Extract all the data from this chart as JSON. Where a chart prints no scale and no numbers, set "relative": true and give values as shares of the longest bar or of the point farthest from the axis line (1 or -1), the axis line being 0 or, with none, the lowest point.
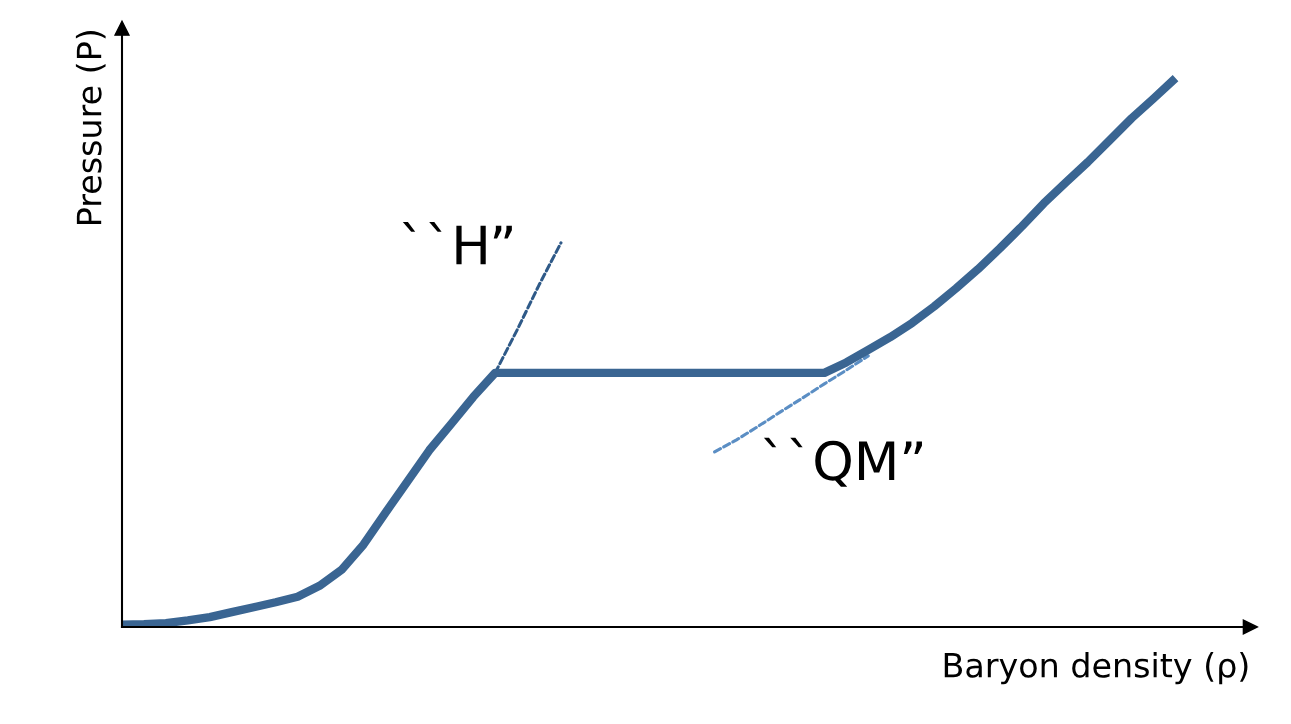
{
  "chart_data": {
    "type": "line",
    "relative": true,
    "tick_labels": false,
    "xlabel": "Baryon density (ρ)",
    "ylabel": "Pressure (P)",
    "categories": [
      null,
      null,
      null,
      null,
      null,
      null,
      null,
      null,
      null,
      null,
      null,
      null,
      null,
      null,
      null,
      null,
      null,
      null,
      null,
      null,
      null,
      null,
      null,
      null,
      null,
      null,
      null,
      null,
      null,
      null,
      null,
      null,
      null,
      null,
      null,
      null,
      null,
      null,
      null,
      null,
      null,
      null,
      null,
      null,
      null,
      null,
      null,
      null,
      null
    ],
    "series": [
      {
        "color": "#2f5a88",
        "line_style": "dashed",
        "values": [
          null,
          null,
          null,
          null,
          null,
          null,
          null,
          null,
          null,
          null,
          null,
          null,
          null,
          null,
          null,
          null,
          null,
          0.463,
          0.541,
          0.623,
          0.7,
          null,
          null,
          null,
          null,
          null,
          null,
          null,
          null,
          null,
          null,
          null,
          null,
          null,
          null,
          null,
          null,
          null,
          null,
          null,
          null,
          null,
          null,
          null,
          null,
          null,
          null,
          null,
          null
        ]
      },
      {
        "color": "#5b8ec4",
        "line_style": "dashed",
        "values": [
          null,
          null,
          null,
          null,
          null,
          null,
          null,
          null,
          null,
          null,
          null,
          null,
          null,
          null,
          null,
          null,
          null,
          null,
          null,
          null,
          null,
          null,
          null,
          null,
          null,
          null,
          null,
          0.319,
          0.341,
          0.366,
          0.392,
          0.417,
          0.443,
          0.468,
          0.494,
          null,
          null,
          null,
          null,
          null,
          null,
          null,
          null,
          null,
          null,
          null,
          null,
          null,
          null
        ]
      },
      {
        "color": "#3a6592",
        "line_style": "solid",
        "values": [
          0.004,
          0.005,
          0.007,
          0.012,
          0.018,
          0.027,
          0.036,
          0.045,
          0.055,
          0.075,
          0.104,
          0.15,
          0.208,
          0.265,
          0.322,
          0.37,
          0.419,
          0.463,
          0.463,
          0.463,
          0.463,
          0.463,
          0.463,
          0.463,
          0.463,
          0.463,
          0.463,
          0.463,
          0.463,
          0.463,
          0.463,
          0.463,
          0.463,
          0.482,
          0.505,
          0.528,
          0.554,
          0.584,
          0.617,
          0.652,
          0.69,
          0.73,
          0.772,
          0.81,
          0.847,
          0.887,
          0.927,
          0.963,
          1.0
        ]
      }
    ],
    "annotations": [
      "``H”",
      "``QM”"
    ]
  }
}
